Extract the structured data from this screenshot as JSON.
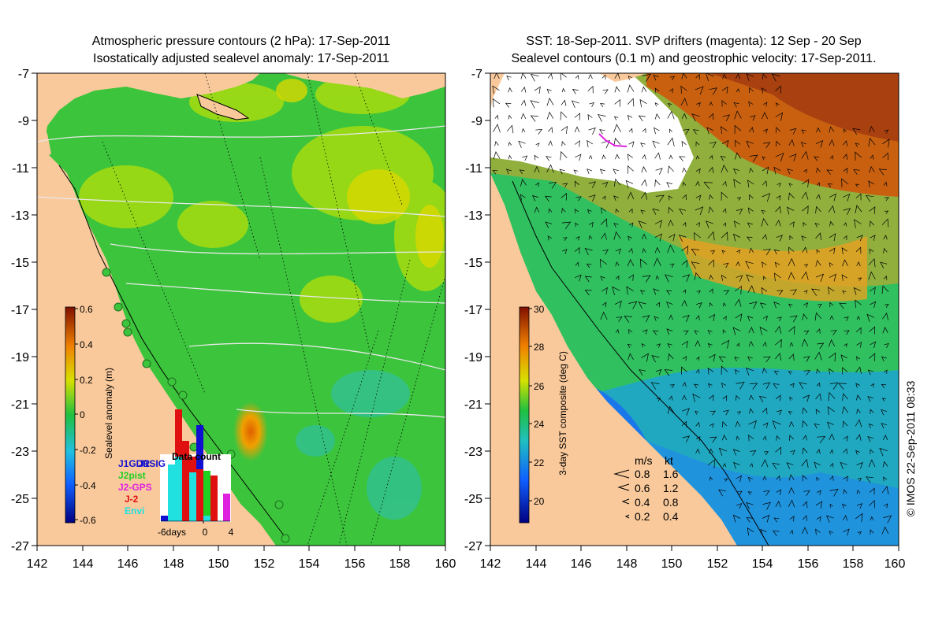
{
  "left_panel": {
    "title_line1": "Atmospheric pressure contours (2 hPa): 17-Sep-2011",
    "title_line2": "Isostatically adjusted sealevel anomaly: 17-Sep-2011",
    "lon_ticks": [
      "142",
      "144",
      "146",
      "148",
      "150",
      "152",
      "154",
      "156",
      "158",
      "160"
    ],
    "lat_ticks": [
      "-7",
      "-9",
      "-11",
      "-13",
      "-15",
      "-17",
      "-19",
      "-21",
      "-23",
      "-25",
      "-27"
    ],
    "colorbar": {
      "label": "Sealevel anomaly (m)",
      "ticks": [
        "0.6",
        "0.4",
        "0.2",
        "0",
        "-0.2",
        "-0.4",
        "-0.6"
      ],
      "min": -0.6,
      "max": 0.6
    },
    "inset": {
      "title": "Data count",
      "xticks": [
        "-6days",
        "0",
        "4"
      ],
      "legend": [
        {
          "label": "J1GDR",
          "color": "#1010d0"
        },
        {
          "label": "J1SIG",
          "color": "#1010d0"
        },
        {
          "label": "J2pist",
          "color": "#20d020"
        },
        {
          "label": "J2-GPS",
          "color": "#e020e0"
        },
        {
          "label": "J-2",
          "color": "#e01010"
        },
        {
          "label": "Envi",
          "color": "#20e0e0"
        }
      ]
    }
  },
  "right_panel": {
    "title_line1": "SST: 18-Sep-2011. SVP drifters (magenta): 12 Sep - 20 Sep",
    "title_line2": "Sealevel contours (0.1 m) and geostrophic velocity: 17-Sep-2011.",
    "lon_ticks": [
      "142",
      "144",
      "146",
      "148",
      "150",
      "152",
      "154",
      "156",
      "158",
      "160"
    ],
    "lat_ticks": [
      "-7",
      "-9",
      "-11",
      "-13",
      "-15",
      "-17",
      "-19",
      "-21",
      "-23",
      "-25",
      "-27"
    ],
    "colorbar": {
      "label": "3-day SST composite (deg C)",
      "ticks": [
        "30",
        "28",
        "26",
        "24",
        "22",
        "20"
      ],
      "min": 19,
      "max": 30
    },
    "vector_legend": {
      "header_ms": "m/s",
      "header_kt": "kt",
      "rows": [
        {
          "ms": "0.8",
          "kt": "1.6"
        },
        {
          "ms": "0.6",
          "kt": "1.2"
        },
        {
          "ms": "0.4",
          "kt": "0.8"
        },
        {
          "ms": "0.2",
          "kt": "0.4"
        }
      ]
    }
  },
  "credit": "© IMOS 22-Sep-2011 08:33",
  "colors": {
    "land": "#f9c99b",
    "sla_green": "#3cc43c",
    "sla_yellow": "#d8e000",
    "sla_orange": "#f0a000",
    "sst_orange": "#e88a20",
    "sst_brown": "#b85010",
    "sst_green": "#30c060",
    "sst_teal": "#20b0a0",
    "sst_blue": "#2090e0",
    "cloud": "#ffffff"
  }
}
